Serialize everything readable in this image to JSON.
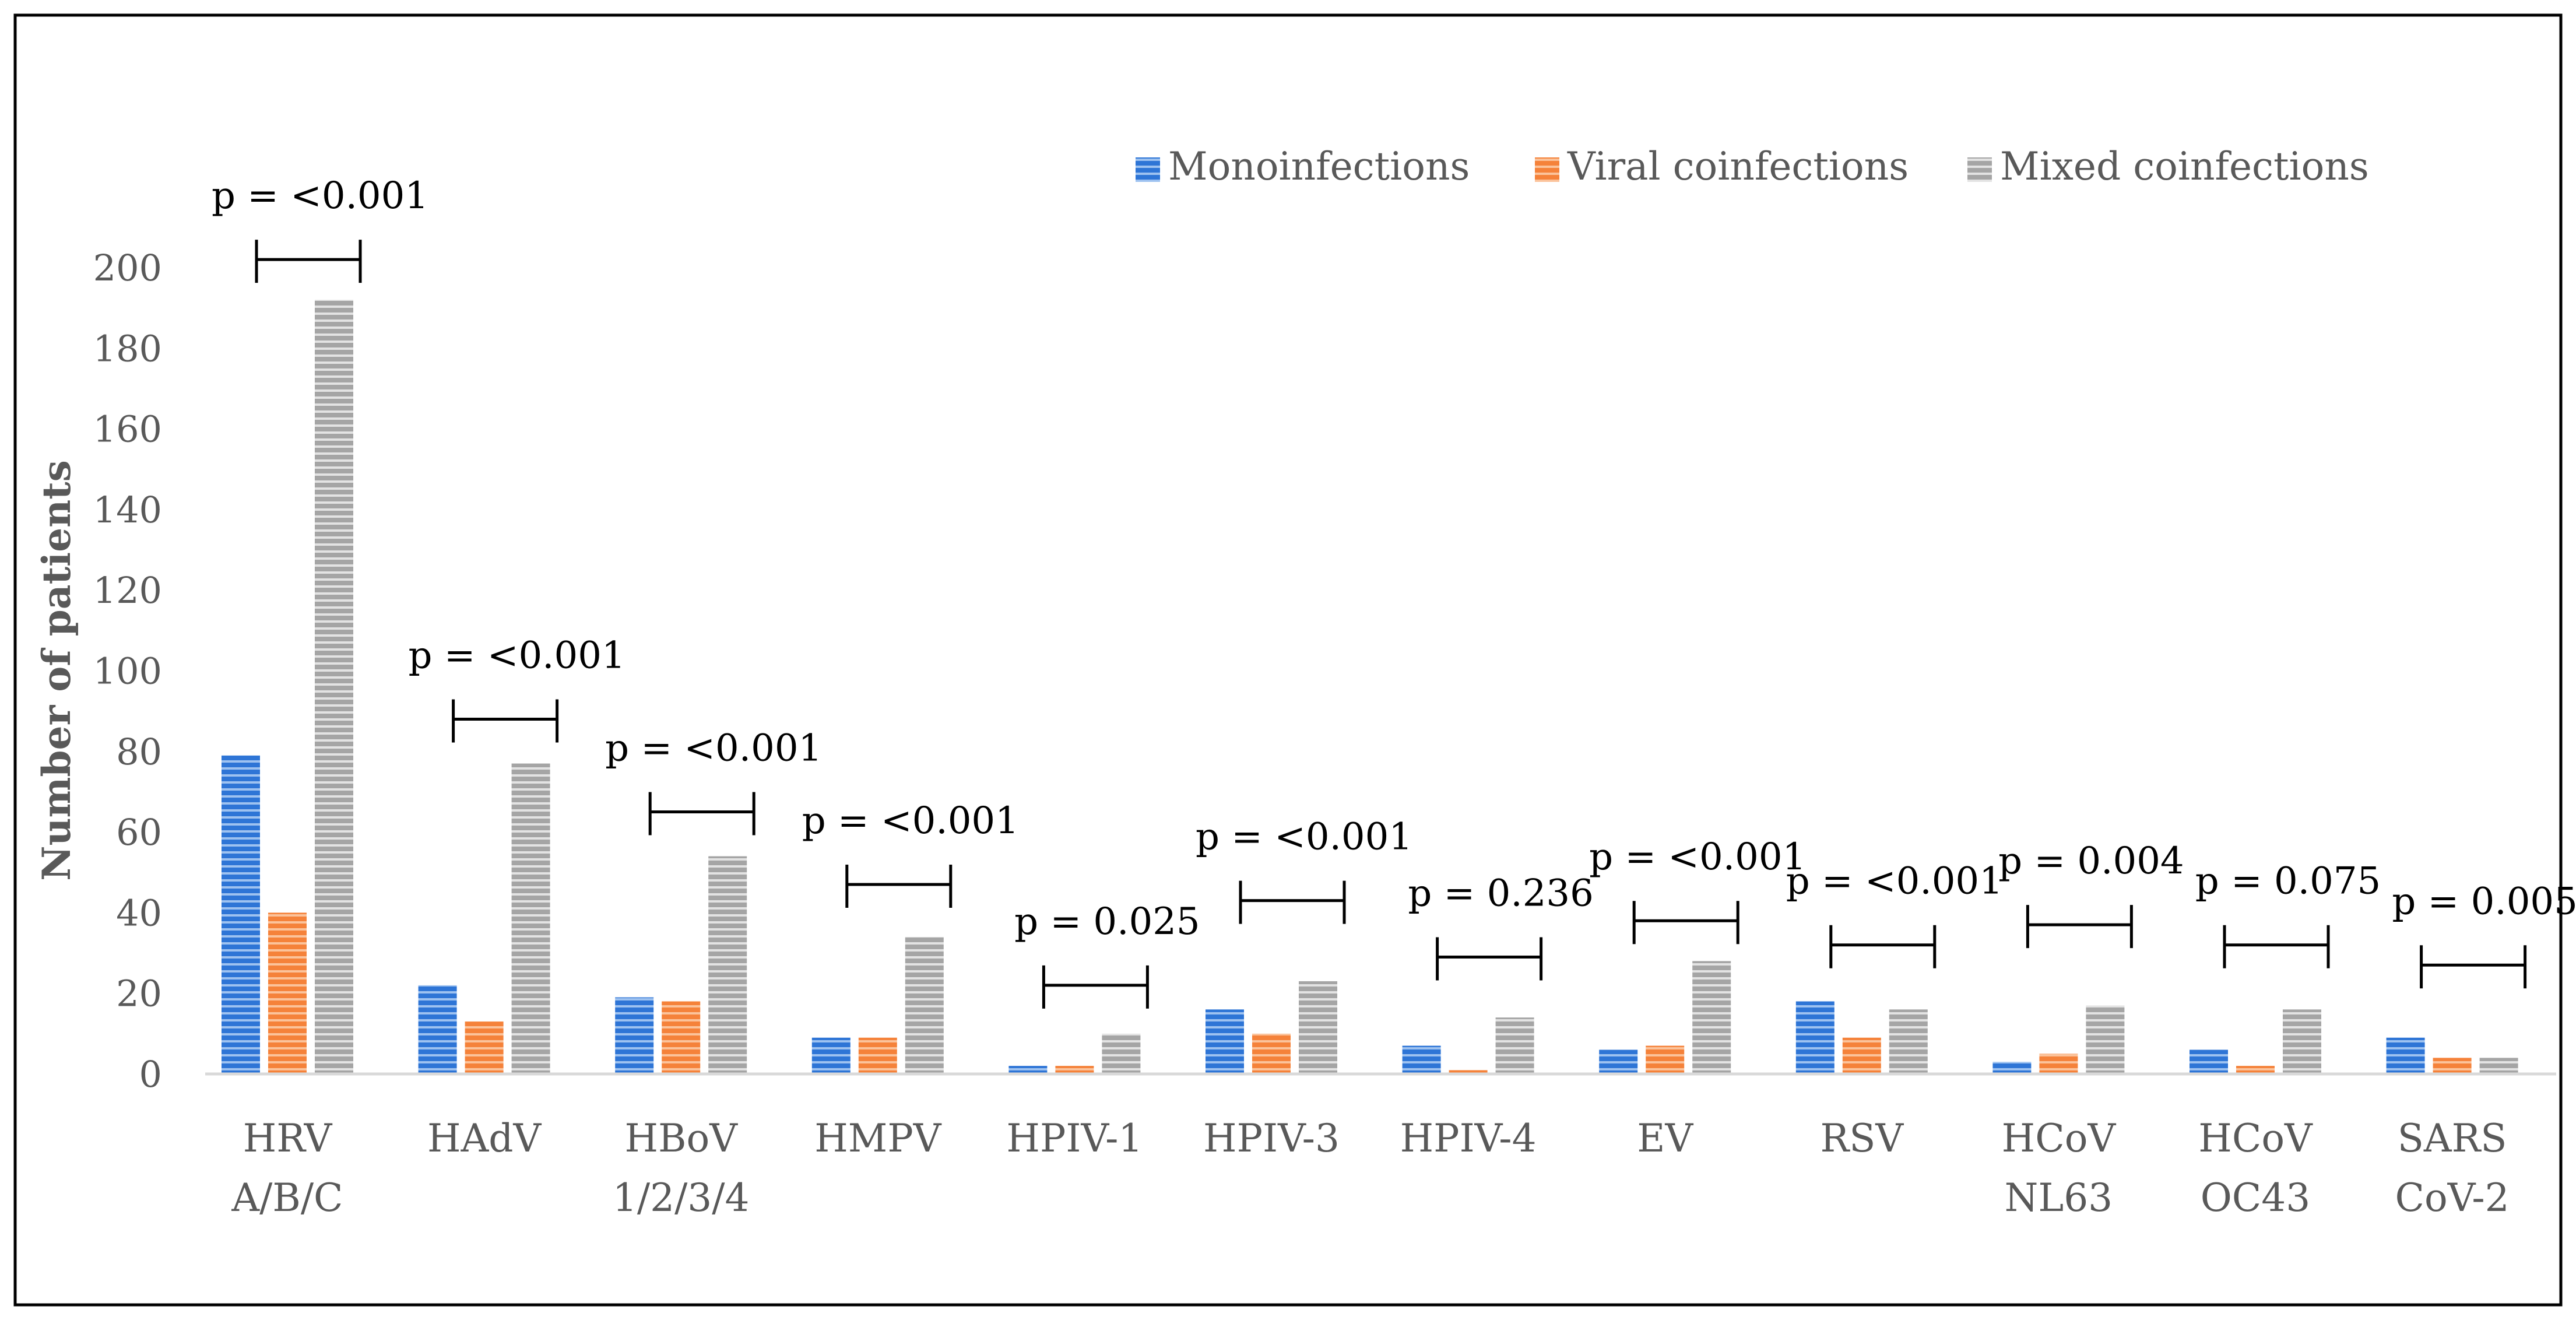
{
  "chart_data": {
    "type": "bar",
    "title": "",
    "xlabel": "",
    "ylabel": "Number of patients",
    "ylim": [
      0,
      200
    ],
    "yticks": [
      "0",
      "20",
      "40",
      "60",
      "80",
      "100",
      "120",
      "140",
      "160",
      "180",
      "200"
    ],
    "grid": false,
    "legend_position": "top-right",
    "categories": [
      [
        "HRV",
        "A/B/C"
      ],
      [
        "HAdV"
      ],
      [
        "HBoV",
        "1/2/3/4"
      ],
      [
        "HMPV"
      ],
      [
        "HPIV-1"
      ],
      [
        "HPIV-3"
      ],
      [
        "HPIV-4"
      ],
      [
        "EV"
      ],
      [
        "RSV"
      ],
      [
        "HCoV",
        "NL63"
      ],
      [
        "HCoV",
        "OC43"
      ],
      [
        "SARS",
        "CoV-2"
      ]
    ],
    "series": [
      {
        "name": "Monoinfections",
        "color": "#2E75D6",
        "values": [
          79,
          22,
          19,
          9,
          2,
          16,
          7,
          6,
          18,
          3,
          6,
          9
        ]
      },
      {
        "name": "Viral coinfections",
        "color": "#F5823A",
        "values": [
          40,
          13,
          18,
          9,
          2,
          10,
          1,
          7,
          9,
          5,
          2,
          4
        ]
      },
      {
        "name": "Mixed coinfections",
        "color": "#A5A5A5",
        "values": [
          192,
          77,
          54,
          34,
          10,
          23,
          14,
          28,
          16,
          17,
          16,
          4
        ]
      }
    ],
    "annotations": [
      "p = <0.001",
      "p = <0.001",
      "p = <0.001",
      "p = <0.001",
      "p = 0.025",
      "p = <0.001",
      "p = 0.236",
      "p = <0.001",
      "p = <0.001",
      "p = 0.004",
      "p = 0.075",
      "p = 0.005"
    ],
    "annotation_bracket_levels": [
      202,
      88,
      65,
      47,
      22,
      43,
      29,
      38,
      32,
      37,
      32,
      27
    ]
  }
}
